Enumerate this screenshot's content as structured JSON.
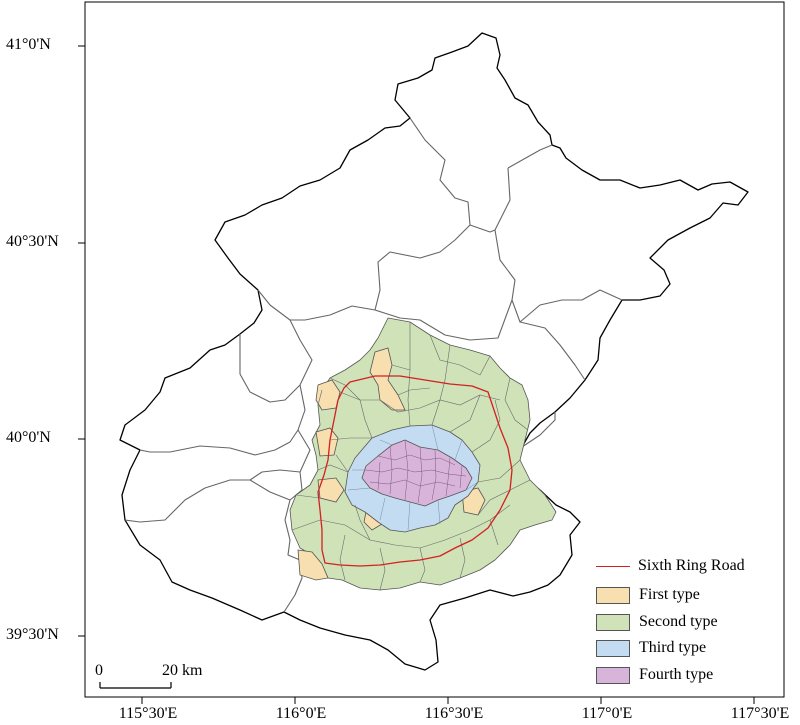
{
  "map": {
    "y_labels": [
      "41°0'N",
      "40°30'N",
      "40°0'N",
      "39°30'N"
    ],
    "x_labels": [
      "115°30'E",
      "116°0'E",
      "116°30'E",
      "117°0'E",
      "117°30'E"
    ],
    "legend": [
      {
        "label": "Sixth Ring Road",
        "kind": "line",
        "color": "#d42020"
      },
      {
        "label": "First type",
        "kind": "fill",
        "color": "#f7dfb0"
      },
      {
        "label": "Second type",
        "kind": "fill",
        "color": "#cfe2b8"
      },
      {
        "label": "Third type",
        "kind": "fill",
        "color": "#c4dcf2"
      },
      {
        "label": "Fourth type",
        "kind": "fill",
        "color": "#d8b4db"
      }
    ],
    "scale_bar": {
      "start_label": "0",
      "end_label": "20 km"
    }
  }
}
